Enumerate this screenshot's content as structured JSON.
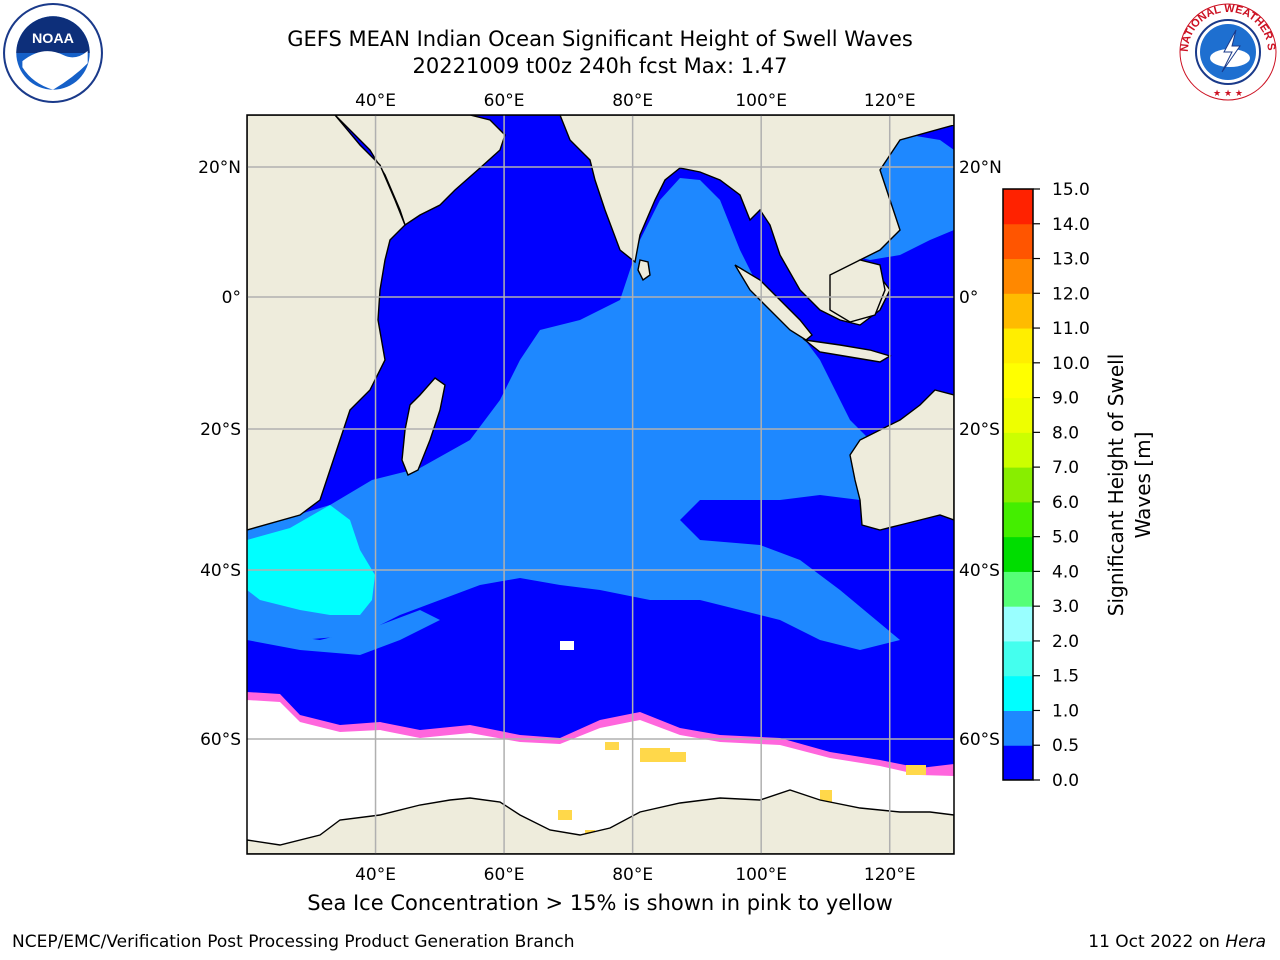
{
  "title": {
    "line1": "GEFS MEAN Indian Ocean Significant Height of Swell Waves",
    "line2": "20221009 t00z 240h fcst   Max: 1.47"
  },
  "map": {
    "lon_ticks": [
      "40°E",
      "60°E",
      "80°E",
      "100°E",
      "120°E"
    ],
    "lon_values": [
      40,
      60,
      80,
      100,
      120
    ],
    "lat_ticks": [
      "20°N",
      "0°",
      "20°S",
      "40°S",
      "60°S"
    ],
    "lat_values": [
      20,
      0,
      -20,
      -40,
      -60
    ],
    "lon_range": [
      20,
      130
    ],
    "lat_range": [
      -77,
      27
    ],
    "colors": {
      "land": "#eeecdc",
      "ice_free": "#ffffff",
      "band_0_0_5": "#0000ff",
      "band_0_5_1_0": "#1e88ff",
      "band_1_0_1_5": "#00ffff",
      "ice_pink": "#ff66dd",
      "ice_yellow": "#ffd84a",
      "grid": "#b0b0b0"
    }
  },
  "colorbar": {
    "title_line1": "Significant Height of Swell",
    "title_line2": "Waves [m]",
    "ticks": [
      "0.0",
      "0.5",
      "1.0",
      "1.5",
      "2.0",
      "3.0",
      "4.0",
      "5.0",
      "6.0",
      "7.0",
      "8.0",
      "9.0",
      "10.0",
      "11.0",
      "12.0",
      "13.0",
      "14.0",
      "15.0"
    ],
    "colors": [
      "#0000ff",
      "#1e88ff",
      "#00ffff",
      "#44ffee",
      "#99ffff",
      "#55ff77",
      "#00dd00",
      "#44ee00",
      "#88ee00",
      "#ccff00",
      "#eeff00",
      "#ffff00",
      "#ffee00",
      "#ffbb00",
      "#ff8800",
      "#ff5500",
      "#ff2200"
    ]
  },
  "caption": "Sea Ice Concentration > 15% is shown in pink to yellow",
  "footer": {
    "left": "NCEP/EMC/Verification Post Processing Product Generation Branch",
    "right_date": "11 Oct 2022 on ",
    "right_machine": "Hera"
  },
  "logos": {
    "noaa_text": "NOAA",
    "nws_text": "NATIONAL WEATHER SERVICE"
  }
}
